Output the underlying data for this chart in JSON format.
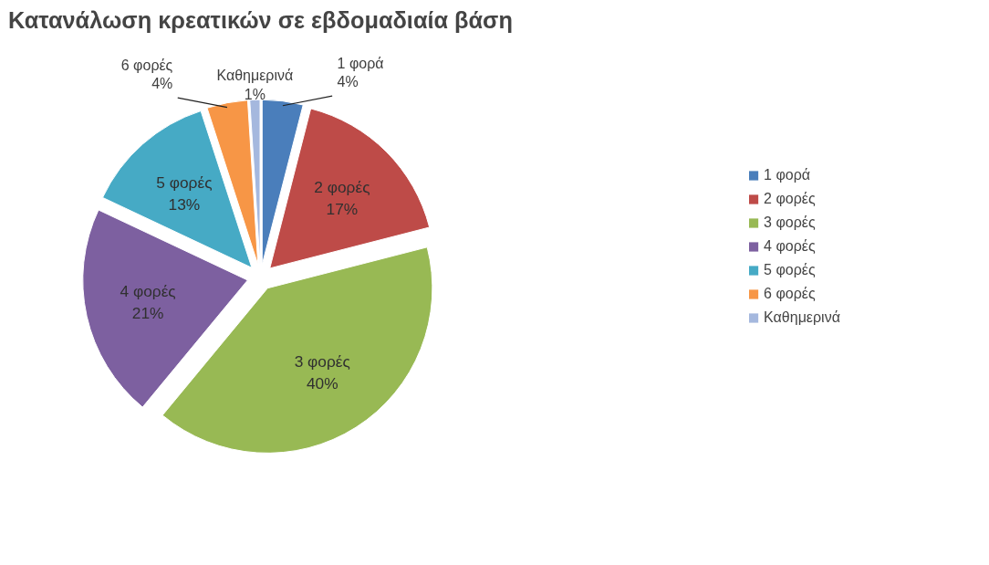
{
  "chart_data": {
    "type": "pie",
    "title": "Κατανάλωση κρεατικών σε εβδομαδιαία βάση",
    "categories": [
      "1 φορά",
      "2 φορές",
      "3 φορές",
      "4 φορές",
      "5 φορές",
      "6 φορές",
      "Καθημερινά"
    ],
    "values": [
      4,
      17,
      40,
      21,
      13,
      4,
      1
    ],
    "colors": [
      "#4a7ebb",
      "#be4b48",
      "#98b954",
      "#7d60a0",
      "#46aac5",
      "#f79646",
      "#a5b8de"
    ],
    "value_labels": [
      "4%",
      "17%",
      "40%",
      "21%",
      "13%",
      "4%",
      "1%"
    ],
    "legend": "right"
  }
}
